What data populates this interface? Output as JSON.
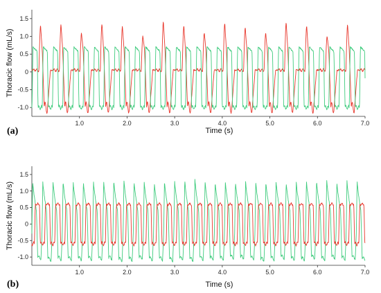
{
  "chart_data": [
    {
      "type": "line",
      "panel_label": "(a)",
      "xlabel": "Time (s)",
      "ylabel": "Thoracic flow (mL/s)",
      "xlim": [
        0,
        7.0
      ],
      "ylim": [
        -1.25,
        1.75
      ],
      "xticks": [
        1.0,
        2.0,
        3.0,
        4.0,
        5.0,
        6.0,
        7.0
      ],
      "xtick_labels": [
        "1.0",
        "2.0",
        "3.0",
        "4.0",
        "5.0",
        "6.0",
        "7.0"
      ],
      "yticks": [
        -1.0,
        -0.5,
        0,
        0.5,
        1.0,
        1.5
      ],
      "ytick_labels": [
        "-1.0",
        "-0.5",
        "0",
        "0.5",
        "1.0",
        "1.5"
      ],
      "grid": false,
      "legend": "none",
      "series": [
        {
          "color": "#e8362b",
          "waveform": {
            "period_s": 0.43,
            "phase_s": 0.02,
            "baseline": 0.05,
            "peak_max": 1.55,
            "peak_min": 0.95,
            "trough": -1.0
          },
          "values": [
            0.05,
            1.0,
            0.65,
            -0.95,
            -0.6,
            0.05,
            1.3,
            0.7,
            -1.0,
            -0.6,
            0.05,
            1.55,
            0.65,
            -1.05,
            -0.55,
            0.05
          ]
        },
        {
          "color": "#3dcb7c",
          "waveform": {
            "period_s": 0.215,
            "phase_s": 0.0,
            "high": 0.7,
            "low": -1.0
          },
          "values": [
            0.7,
            -0.95,
            0.7,
            -1.0,
            0.65,
            -1.0,
            0.7,
            -0.95,
            0.7,
            -1.05,
            0.65,
            -1.0
          ]
        }
      ]
    },
    {
      "type": "line",
      "panel_label": "(b)",
      "xlabel": "Time (s)",
      "ylabel": "Thoracic flow (mL/s)",
      "xlim": [
        0,
        7.0
      ],
      "ylim": [
        -1.25,
        1.75
      ],
      "xticks": [
        1.0,
        2.0,
        3.0,
        4.0,
        5.0,
        6.0,
        7.0
      ],
      "xtick_labels": [
        "1.0",
        "2.0",
        "3.0",
        "4.0",
        "5.0",
        "6.0",
        "7.0"
      ],
      "yticks": [
        -1.0,
        -0.5,
        0,
        0.5,
        1.0,
        1.5
      ],
      "ytick_labels": [
        "-1.0",
        "-0.5",
        "0",
        "0.5",
        "1.0",
        "1.5"
      ],
      "grid": false,
      "legend": "none",
      "series": [
        {
          "color": "#3dcb7c",
          "waveform": {
            "period_s": 0.213,
            "phase_s": 0.0,
            "peak": 1.3,
            "trough": -1.0
          },
          "values": [
            1.3,
            -0.95,
            1.25,
            -1.0,
            1.3,
            -1.05,
            1.4,
            -1.0,
            1.25,
            -0.95
          ]
        },
        {
          "color": "#e8362b",
          "waveform": {
            "period_s": 0.213,
            "phase_s": 0.05,
            "high": 0.6,
            "low": -0.6
          },
          "values": [
            0.6,
            -0.6,
            0.55,
            -0.65,
            0.6,
            -0.6,
            0.6,
            -0.55
          ]
        }
      ]
    }
  ]
}
